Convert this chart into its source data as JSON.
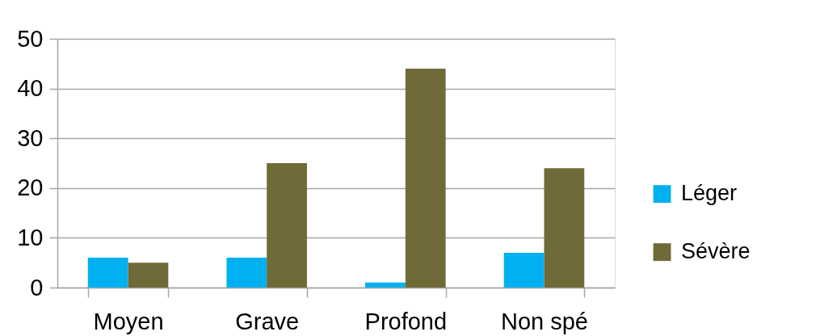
{
  "chart_data": {
    "type": "bar",
    "categories": [
      "Moyen",
      "Grave",
      "Profond",
      "Non spé"
    ],
    "series": [
      {
        "name": "Léger",
        "color": "#00b0f0",
        "values": [
          6,
          6,
          1,
          7
        ]
      },
      {
        "name": "Sévère",
        "color": "#6f6a37",
        "values": [
          5,
          25,
          44,
          24
        ]
      }
    ],
    "ylim": [
      0,
      50
    ],
    "yticks": [
      0,
      10,
      20,
      30,
      40,
      50
    ],
    "grid": "y",
    "legend": "right"
  }
}
